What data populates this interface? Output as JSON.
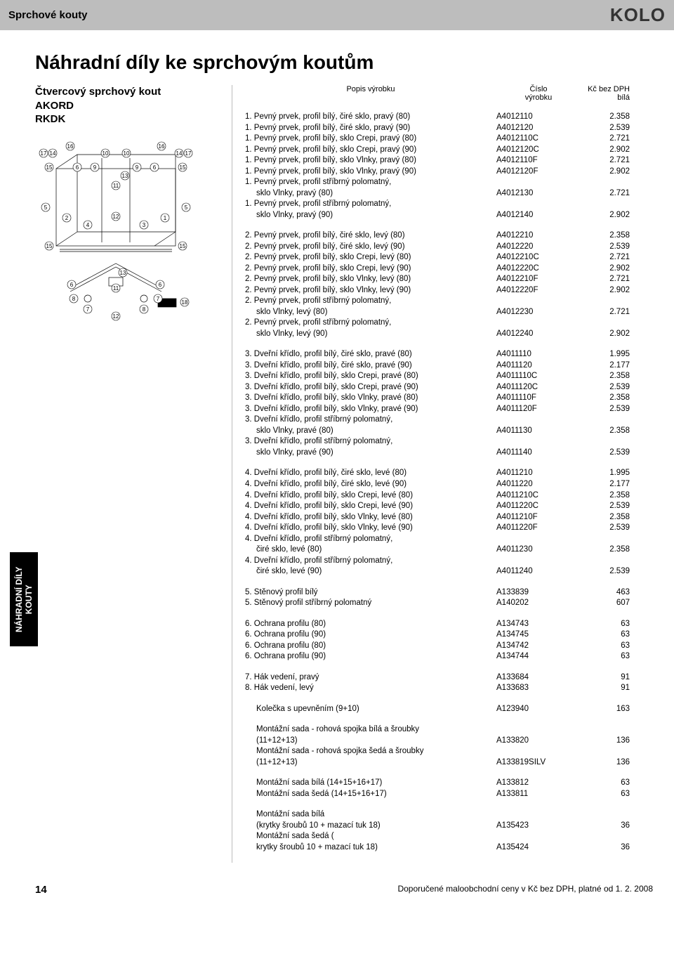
{
  "topbar_title": "Sprchové kouty",
  "logo": "KOLO",
  "main_title": "Náhradní díly ke sprchovým koutům",
  "product": {
    "line1": "Čtvercový sprchový kout",
    "line2": "AKORD",
    "line3": "RKDK"
  },
  "side_tab": {
    "line1": "NÁHRADNÍ DÍLY",
    "line2": "KOUTY"
  },
  "header": {
    "desc": "Popis výrobku",
    "code": "Číslo\nvýrobku",
    "price": "Kč bez DPH\nbílá"
  },
  "blocks": [
    [
      [
        "1. Pevný prvek, profil bílý, čiré sklo, pravý (80)",
        "A4012110",
        "2.358"
      ],
      [
        "1. Pevný prvek, profil bílý, čiré sklo, pravý (90)",
        "A4012120",
        "2.539"
      ],
      [
        "1. Pevný prvek, profil bílý, sklo Crepi, pravý (80)",
        "A4012110C",
        "2.721"
      ],
      [
        "1. Pevný prvek, profil bílý, sklo Crepi, pravý (90)",
        "A4012120C",
        "2.902"
      ],
      [
        "1. Pevný prvek, profil bílý, sklo Vlnky, pravý (80)",
        "A4012110F",
        "2.721"
      ],
      [
        "1. Pevný prvek, profil bílý, sklo Vlnky, pravý (90)",
        "A4012120F",
        "2.902"
      ],
      [
        "1. Pevný prvek, profil stříbrný polomatný,",
        "",
        ""
      ],
      [
        "    sklo Vlnky, pravý (80)",
        "A4012130",
        "2.721",
        true
      ],
      [
        "1. Pevný prvek, profil stříbrný polomatný,",
        "",
        ""
      ],
      [
        "    sklo Vlnky, pravý (90)",
        "A4012140",
        "2.902",
        true
      ]
    ],
    [
      [
        "2. Pevný prvek, profil bílý, čiré sklo, levý (80)",
        "A4012210",
        "2.358"
      ],
      [
        "2. Pevný prvek, profil bílý, čiré sklo, levý (90)",
        "A4012220",
        "2.539"
      ],
      [
        "2. Pevný prvek, profil bílý, sklo Crepi, levý (80)",
        "A4012210C",
        "2.721"
      ],
      [
        "2. Pevný prvek, profil bílý, sklo Crepi, levý (90)",
        "A4012220C",
        "2.902"
      ],
      [
        "2. Pevný prvek, profil bílý, sklo Vlnky, levý (80)",
        "A4012210F",
        "2.721"
      ],
      [
        "2. Pevný prvek, profil bílý, sklo Vlnky, levý (90)",
        "A4012220F",
        "2.902"
      ],
      [
        "2. Pevný prvek, profil stříbrný polomatný,",
        "",
        ""
      ],
      [
        "    sklo Vlnky, levý (80)",
        "A4012230",
        "2.721",
        true
      ],
      [
        "2. Pevný prvek, profil stříbrný polomatný,",
        "",
        ""
      ],
      [
        "    sklo Vlnky, levý (90)",
        "A4012240",
        "2.902",
        true
      ]
    ],
    [
      [
        "3. Dveřní křídlo, profil bílý, čiré sklo, pravé (80)",
        "A4011110",
        "1.995"
      ],
      [
        "3. Dveřní křídlo, profil bílý, čiré sklo, pravé (90)",
        "A4011120",
        "2.177"
      ],
      [
        "3. Dveřní křídlo, profil bílý, sklo Crepi, pravé (80)",
        "A4011110C",
        "2.358"
      ],
      [
        "3. Dveřní křídlo, profil bílý, sklo Crepi, pravé (90)",
        "A4011120C",
        "2.539"
      ],
      [
        "3. Dveřní křídlo, profil bílý, sklo Vlnky, pravé (80)",
        "A4011110F",
        "2.358"
      ],
      [
        "3. Dveřní křídlo, profil bílý, sklo Vlnky, pravé (90)",
        "A4011120F",
        "2.539"
      ],
      [
        "3. Dveřní křídlo, profil stříbrný polomatný,",
        "",
        ""
      ],
      [
        "    sklo Vlnky, pravé (80)",
        "A4011130",
        "2.358",
        true
      ],
      [
        "3. Dveřní křídlo, profil stříbrný polomatný,",
        "",
        ""
      ],
      [
        "    sklo Vlnky, pravé (90)",
        "A4011140",
        "2.539",
        true
      ]
    ],
    [
      [
        "4. Dveřní křídlo, profil bílý, čiré sklo, levé (80)",
        "A4011210",
        "1.995"
      ],
      [
        "4. Dveřní křídlo, profil bílý, čiré sklo, levé (90)",
        "A4011220",
        "2.177"
      ],
      [
        "4. Dveřní křídlo, profil bílý, sklo Crepi, levé (80)",
        "A4011210C",
        "2.358"
      ],
      [
        "4. Dveřní křídlo, profil bílý, sklo Crepi, levé (90)",
        "A4011220C",
        "2.539"
      ],
      [
        "4. Dveřní křídlo, profil bílý, sklo Vlnky, levé (80)",
        "A4011210F",
        "2.358"
      ],
      [
        "4. Dveřní křídlo, profil bílý, sklo Vlnky, levé (90)",
        "A4011220F",
        "2.539"
      ],
      [
        "4. Dveřní křídlo, profil stříbrný polomatný,",
        "",
        ""
      ],
      [
        "    čiré sklo, levé (80)",
        "A4011230",
        "2.358",
        true
      ],
      [
        "4. Dveřní křídlo, profil stříbrný polomatný,",
        "",
        ""
      ],
      [
        "    čiré sklo, levé (90)",
        "A4011240",
        "2.539",
        true
      ]
    ],
    [
      [
        "5. Stěnový profil bílý",
        "A133839",
        "463"
      ],
      [
        "5. Stěnový profil stříbrný polomatný",
        "A140202",
        "607"
      ]
    ],
    [
      [
        "6. Ochrana profilu (80)",
        "A134743",
        "63"
      ],
      [
        "6. Ochrana profilu (90)",
        "A134745",
        "63"
      ],
      [
        "6. Ochrana profilu (80)",
        "A134742",
        "63"
      ],
      [
        "6. Ochrana profilu (90)",
        "A134744",
        "63"
      ]
    ],
    [
      [
        "7. Hák vedení, pravý",
        "A133684",
        "91"
      ],
      [
        "8. Hák vedení, levý",
        "A133683",
        "91"
      ]
    ],
    [
      [
        "    Kolečka s upevněním (9+10)",
        "A123940",
        "163",
        true
      ]
    ],
    [
      [
        "    Montážní sada - rohová spojka bílá a šroubky",
        "",
        "",
        true
      ],
      [
        "    (11+12+13)",
        "A133820",
        "136",
        true
      ],
      [
        "    Montážní sada - rohová spojka šedá a šroubky",
        "",
        "",
        true
      ],
      [
        "    (11+12+13)",
        "A133819SILV",
        "136",
        true
      ]
    ],
    [
      [
        "    Montážní sada bílá (14+15+16+17)",
        "A133812",
        "63",
        true
      ],
      [
        "    Montážní sada šedá (14+15+16+17)",
        "A133811",
        "63",
        true
      ]
    ],
    [
      [
        "    Montážní sada bílá",
        "",
        "",
        true
      ],
      [
        "    (krytky šroubů 10 + mazací tuk 18)",
        "A135423",
        "36",
        true
      ],
      [
        "    Montážní sada šedá (",
        "",
        "",
        true
      ],
      [
        "    krytky šroubů 10 + mazací tuk 18)",
        "A135424",
        "36",
        true
      ]
    ]
  ],
  "footer": {
    "page": "14",
    "note": "Doporučené maloobchodní ceny v Kč bez DPH, platné od 1. 2. 2008"
  }
}
